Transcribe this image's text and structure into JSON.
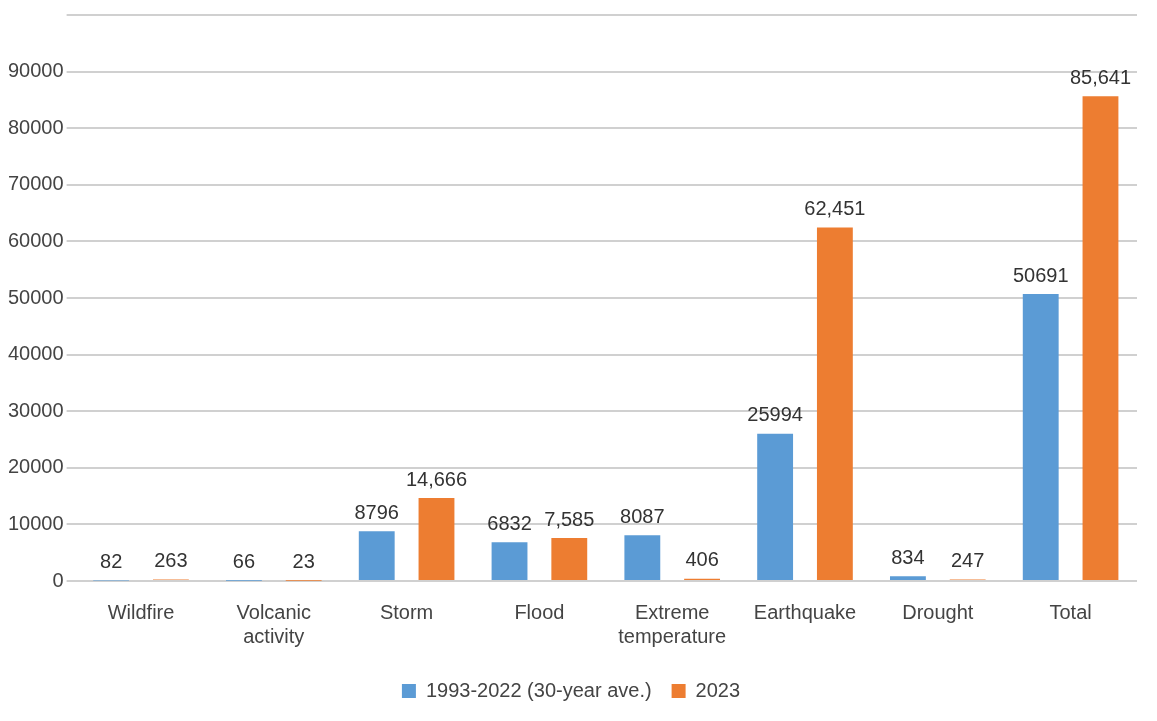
{
  "chart_data": {
    "type": "bar",
    "categories": [
      "Wildfire",
      "Volcanic activity",
      "Storm",
      "Flood",
      "Extreme temperature",
      "Earthquake",
      "Drought",
      "Total"
    ],
    "series": [
      {
        "name": "1993-2022 (30-year ave.)",
        "color": "#5b9bd5",
        "values": [
          82,
          66,
          8796,
          6832,
          8087,
          25994,
          834,
          50691
        ],
        "value_labels": [
          "82",
          "66",
          "8796",
          "6832",
          "8087",
          "25994",
          "834",
          "50691"
        ]
      },
      {
        "name": "2023",
        "color": "#ed7d31",
        "values": [
          263,
          23,
          14666,
          7585,
          406,
          62451,
          247,
          85641
        ],
        "value_labels": [
          "263",
          "23",
          "14,666",
          "7,585",
          "406",
          "62,451",
          "247",
          "85,641"
        ]
      }
    ],
    "ylim": [
      0,
      100000
    ],
    "yticks": [
      0,
      10000,
      20000,
      30000,
      40000,
      50000,
      60000,
      70000,
      80000,
      90000,
      {
        "value": 100000,
        "label": null
      }
    ],
    "grid": "y",
    "legend": "bottom"
  }
}
